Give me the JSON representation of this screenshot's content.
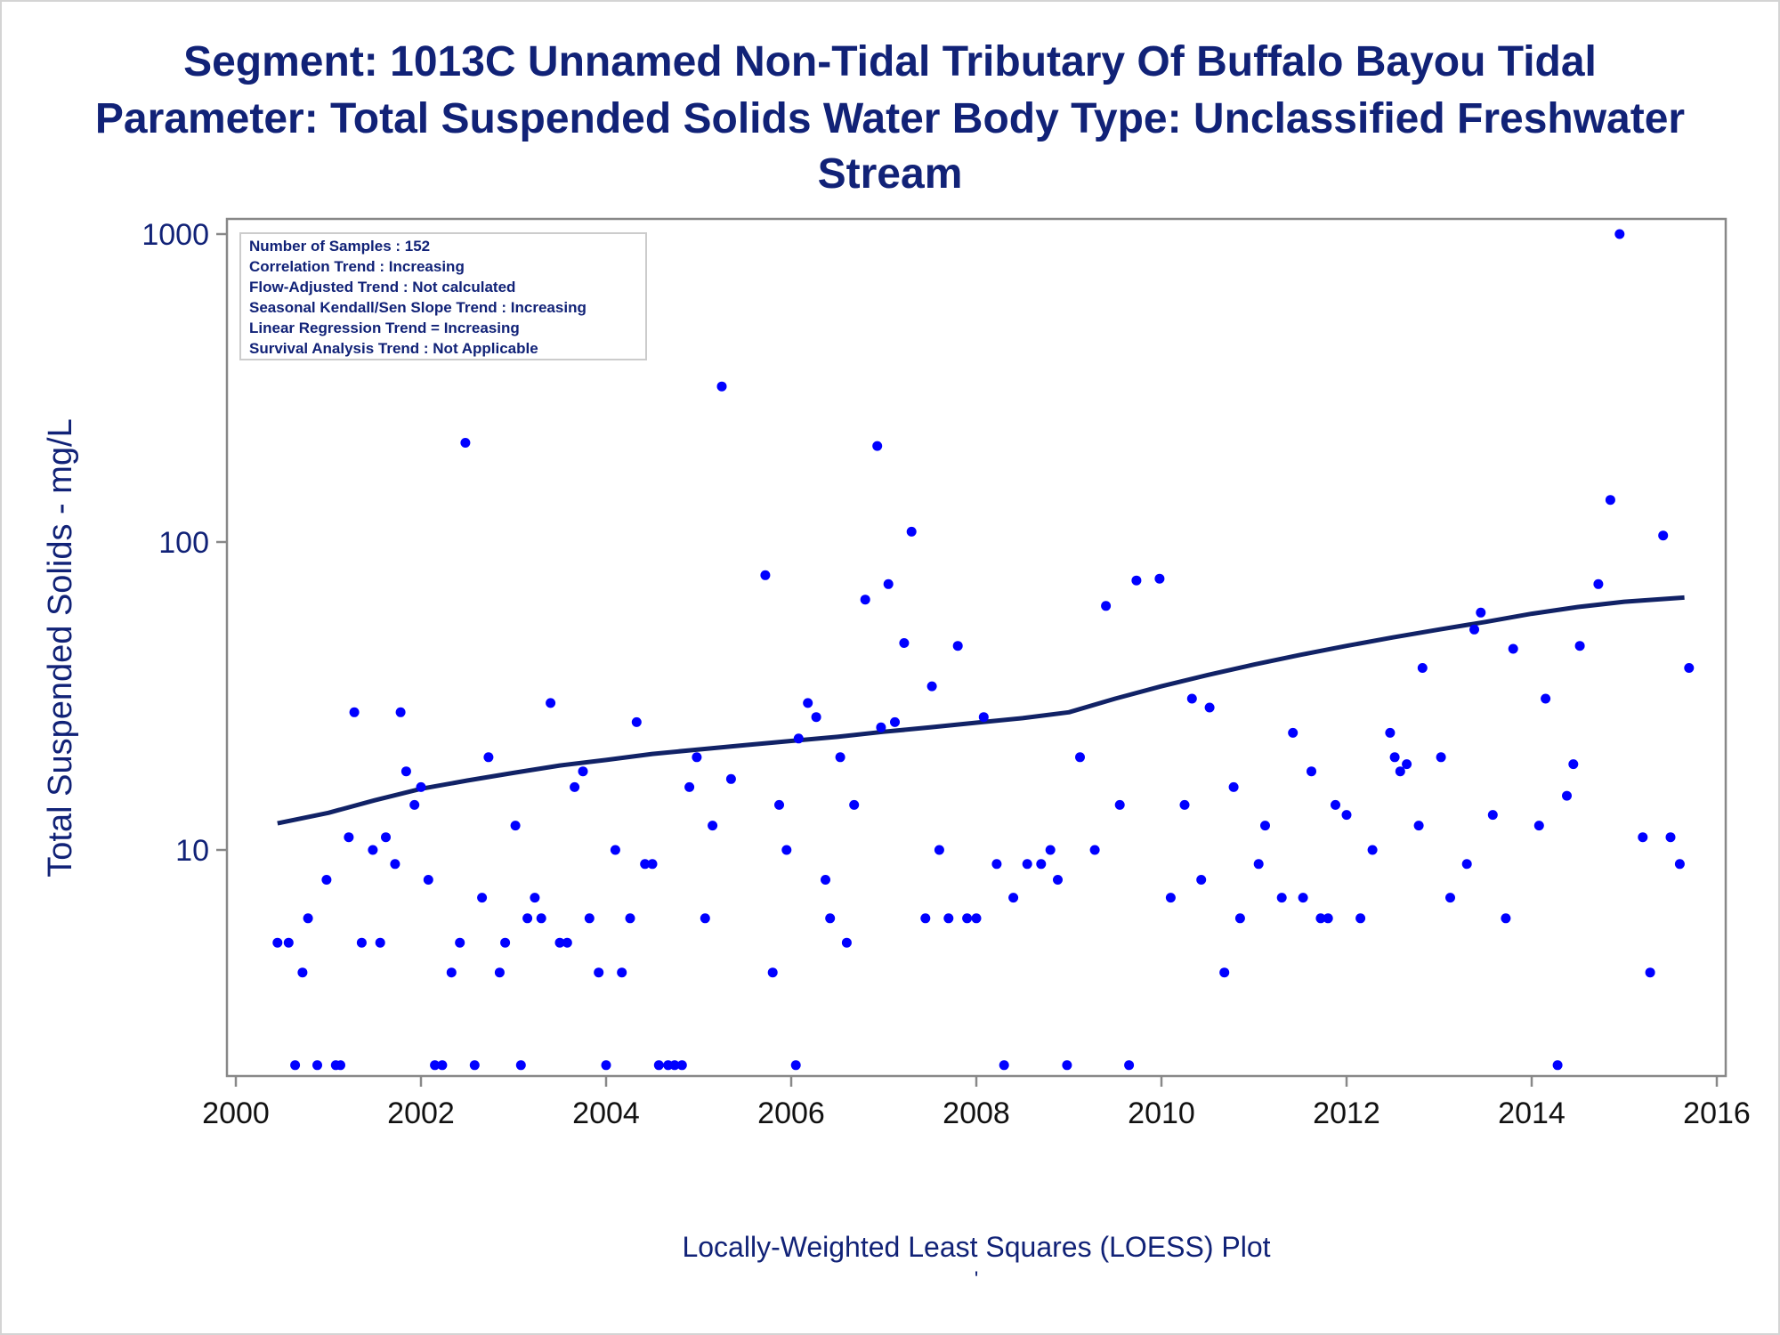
{
  "title_lines": [
    "Segment: 1013C  Unnamed Non-Tidal Tributary Of Buffalo Bayou Tidal",
    "Parameter: Total Suspended Solids   Water Body Type: Unclassified Freshwater",
    "Stream"
  ],
  "info_box": [
    "Number of Samples : 152",
    "Correlation Trend : Increasing",
    "Flow-Adjusted Trend : Not calculated",
    "Seasonal Kendall/Sen Slope Trend : Increasing",
    "Linear Regression Trend = Increasing",
    "Survival Analysis Trend : Not Applicable"
  ],
  "footnote": "Locally-Weighted Least Squares (LOESS) Plot",
  "footnote_mark": "'",
  "colors": {
    "title": "#112277",
    "points": "#0000ff",
    "trend_line": "#112266",
    "axis": "#888888"
  },
  "chart_data": {
    "type": "scatter",
    "xlabel": "",
    "ylabel": "Total Suspended Solids - mg/L",
    "x_scale": "linear (year)",
    "y_scale": "log10",
    "xlim": [
      2000,
      2016
    ],
    "ylim": [
      1.95,
      1100
    ],
    "x_ticks": [
      2000,
      2002,
      2004,
      2006,
      2008,
      2010,
      2012,
      2014,
      2016
    ],
    "y_ticks": [
      10,
      100,
      1000
    ],
    "y_tick_labels": [
      "10",
      "100",
      "1000"
    ],
    "grid": false,
    "points": [
      [
        2000.45,
        5
      ],
      [
        2000.57,
        5
      ],
      [
        2000.64,
        2
      ],
      [
        2000.72,
        4
      ],
      [
        2000.78,
        6
      ],
      [
        2000.88,
        2
      ],
      [
        2000.98,
        8
      ],
      [
        2001.08,
        2
      ],
      [
        2001.13,
        2
      ],
      [
        2001.22,
        11
      ],
      [
        2001.28,
        28
      ],
      [
        2001.36,
        5
      ],
      [
        2001.48,
        10
      ],
      [
        2001.56,
        5
      ],
      [
        2001.62,
        11
      ],
      [
        2001.72,
        9
      ],
      [
        2001.78,
        28
      ],
      [
        2001.84,
        18
      ],
      [
        2001.93,
        14
      ],
      [
        2002.0,
        16
      ],
      [
        2002.08,
        8
      ],
      [
        2002.15,
        2
      ],
      [
        2002.23,
        2
      ],
      [
        2002.33,
        4
      ],
      [
        2002.42,
        5
      ],
      [
        2002.48,
        210
      ],
      [
        2002.58,
        2
      ],
      [
        2002.66,
        7
      ],
      [
        2002.73,
        20
      ],
      [
        2002.85,
        4
      ],
      [
        2002.91,
        5
      ],
      [
        2003.02,
        12
      ],
      [
        2003.08,
        2
      ],
      [
        2003.15,
        6
      ],
      [
        2003.23,
        7
      ],
      [
        2003.3,
        6
      ],
      [
        2003.4,
        30
      ],
      [
        2003.5,
        5
      ],
      [
        2003.58,
        5
      ],
      [
        2003.66,
        16
      ],
      [
        2003.75,
        18
      ],
      [
        2003.82,
        6
      ],
      [
        2003.92,
        4
      ],
      [
        2004.0,
        2
      ],
      [
        2004.1,
        10
      ],
      [
        2004.17,
        4
      ],
      [
        2004.26,
        6
      ],
      [
        2004.33,
        26
      ],
      [
        2004.42,
        9
      ],
      [
        2004.5,
        9
      ],
      [
        2004.57,
        2
      ],
      [
        2004.67,
        2
      ],
      [
        2004.74,
        2
      ],
      [
        2004.82,
        2
      ],
      [
        2004.9,
        16
      ],
      [
        2004.98,
        20
      ],
      [
        2005.07,
        6
      ],
      [
        2005.15,
        12
      ],
      [
        2005.25,
        320
      ],
      [
        2005.35,
        17
      ],
      [
        2005.72,
        78
      ],
      [
        2005.8,
        4
      ],
      [
        2005.87,
        14
      ],
      [
        2005.95,
        10
      ],
      [
        2006.05,
        2
      ],
      [
        2006.08,
        23
      ],
      [
        2006.18,
        30
      ],
      [
        2006.27,
        27
      ],
      [
        2006.37,
        8
      ],
      [
        2006.42,
        6
      ],
      [
        2006.53,
        20
      ],
      [
        2006.6,
        5
      ],
      [
        2006.68,
        14
      ],
      [
        2006.8,
        65
      ],
      [
        2006.93,
        205
      ],
      [
        2006.97,
        25
      ],
      [
        2007.05,
        73
      ],
      [
        2007.12,
        26
      ],
      [
        2007.22,
        47
      ],
      [
        2007.3,
        108
      ],
      [
        2007.45,
        6
      ],
      [
        2007.52,
        34
      ],
      [
        2007.6,
        10
      ],
      [
        2007.7,
        6
      ],
      [
        2007.8,
        46
      ],
      [
        2007.9,
        6
      ],
      [
        2008.0,
        6
      ],
      [
        2008.08,
        27
      ],
      [
        2008.22,
        9
      ],
      [
        2008.3,
        2
      ],
      [
        2008.4,
        7
      ],
      [
        2008.55,
        9
      ],
      [
        2008.7,
        9
      ],
      [
        2008.8,
        10
      ],
      [
        2008.88,
        8
      ],
      [
        2008.98,
        2
      ],
      [
        2009.12,
        20
      ],
      [
        2009.28,
        10
      ],
      [
        2009.4,
        62
      ],
      [
        2009.55,
        14
      ],
      [
        2009.65,
        2
      ],
      [
        2009.73,
        75
      ],
      [
        2009.98,
        76
      ],
      [
        2010.1,
        7
      ],
      [
        2010.25,
        14
      ],
      [
        2010.33,
        31
      ],
      [
        2010.43,
        8
      ],
      [
        2010.52,
        29
      ],
      [
        2010.68,
        4
      ],
      [
        2010.78,
        16
      ],
      [
        2010.85,
        6
      ],
      [
        2011.05,
        9
      ],
      [
        2011.12,
        12
      ],
      [
        2011.3,
        7
      ],
      [
        2011.42,
        24
      ],
      [
        2011.53,
        7
      ],
      [
        2011.62,
        18
      ],
      [
        2011.72,
        6
      ],
      [
        2011.8,
        6
      ],
      [
        2011.88,
        14
      ],
      [
        2012.0,
        13
      ],
      [
        2012.15,
        6
      ],
      [
        2012.28,
        10
      ],
      [
        2012.47,
        24
      ],
      [
        2012.52,
        20
      ],
      [
        2012.58,
        18
      ],
      [
        2012.65,
        19
      ],
      [
        2012.78,
        12
      ],
      [
        2012.82,
        39
      ],
      [
        2013.02,
        20
      ],
      [
        2013.12,
        7
      ],
      [
        2013.3,
        9
      ],
      [
        2013.38,
        52
      ],
      [
        2013.45,
        59
      ],
      [
        2013.58,
        13
      ],
      [
        2013.72,
        6
      ],
      [
        2013.8,
        45
      ],
      [
        2014.08,
        12
      ],
      [
        2014.15,
        31
      ],
      [
        2014.28,
        2
      ],
      [
        2014.38,
        15
      ],
      [
        2014.45,
        19
      ],
      [
        2014.52,
        46
      ],
      [
        2014.72,
        73
      ],
      [
        2014.85,
        137
      ],
      [
        2014.95,
        1000
      ],
      [
        2015.2,
        11
      ],
      [
        2015.28,
        4
      ],
      [
        2015.42,
        105
      ],
      [
        2015.5,
        11
      ],
      [
        2015.6,
        9
      ],
      [
        2015.7,
        39
      ]
    ],
    "trend_line": [
      [
        2000.45,
        12.2
      ],
      [
        2001.0,
        13.2
      ],
      [
        2001.5,
        14.5
      ],
      [
        2002.0,
        15.8
      ],
      [
        2002.5,
        16.8
      ],
      [
        2003.0,
        17.8
      ],
      [
        2003.5,
        18.8
      ],
      [
        2004.0,
        19.6
      ],
      [
        2004.5,
        20.5
      ],
      [
        2005.0,
        21.2
      ],
      [
        2005.5,
        21.9
      ],
      [
        2006.0,
        22.6
      ],
      [
        2006.5,
        23.3
      ],
      [
        2007.0,
        24.2
      ],
      [
        2007.5,
        25.0
      ],
      [
        2008.0,
        25.9
      ],
      [
        2008.5,
        26.8
      ],
      [
        2009.0,
        28.0
      ],
      [
        2009.5,
        31.0
      ],
      [
        2010.0,
        34.0
      ],
      [
        2010.5,
        37.0
      ],
      [
        2011.0,
        40.0
      ],
      [
        2011.5,
        43.0
      ],
      [
        2012.0,
        46.0
      ],
      [
        2012.5,
        49.0
      ],
      [
        2013.0,
        52.0
      ],
      [
        2013.5,
        55.0
      ],
      [
        2014.0,
        58.5
      ],
      [
        2014.5,
        61.5
      ],
      [
        2015.0,
        64.0
      ],
      [
        2015.65,
        66.0
      ]
    ]
  }
}
